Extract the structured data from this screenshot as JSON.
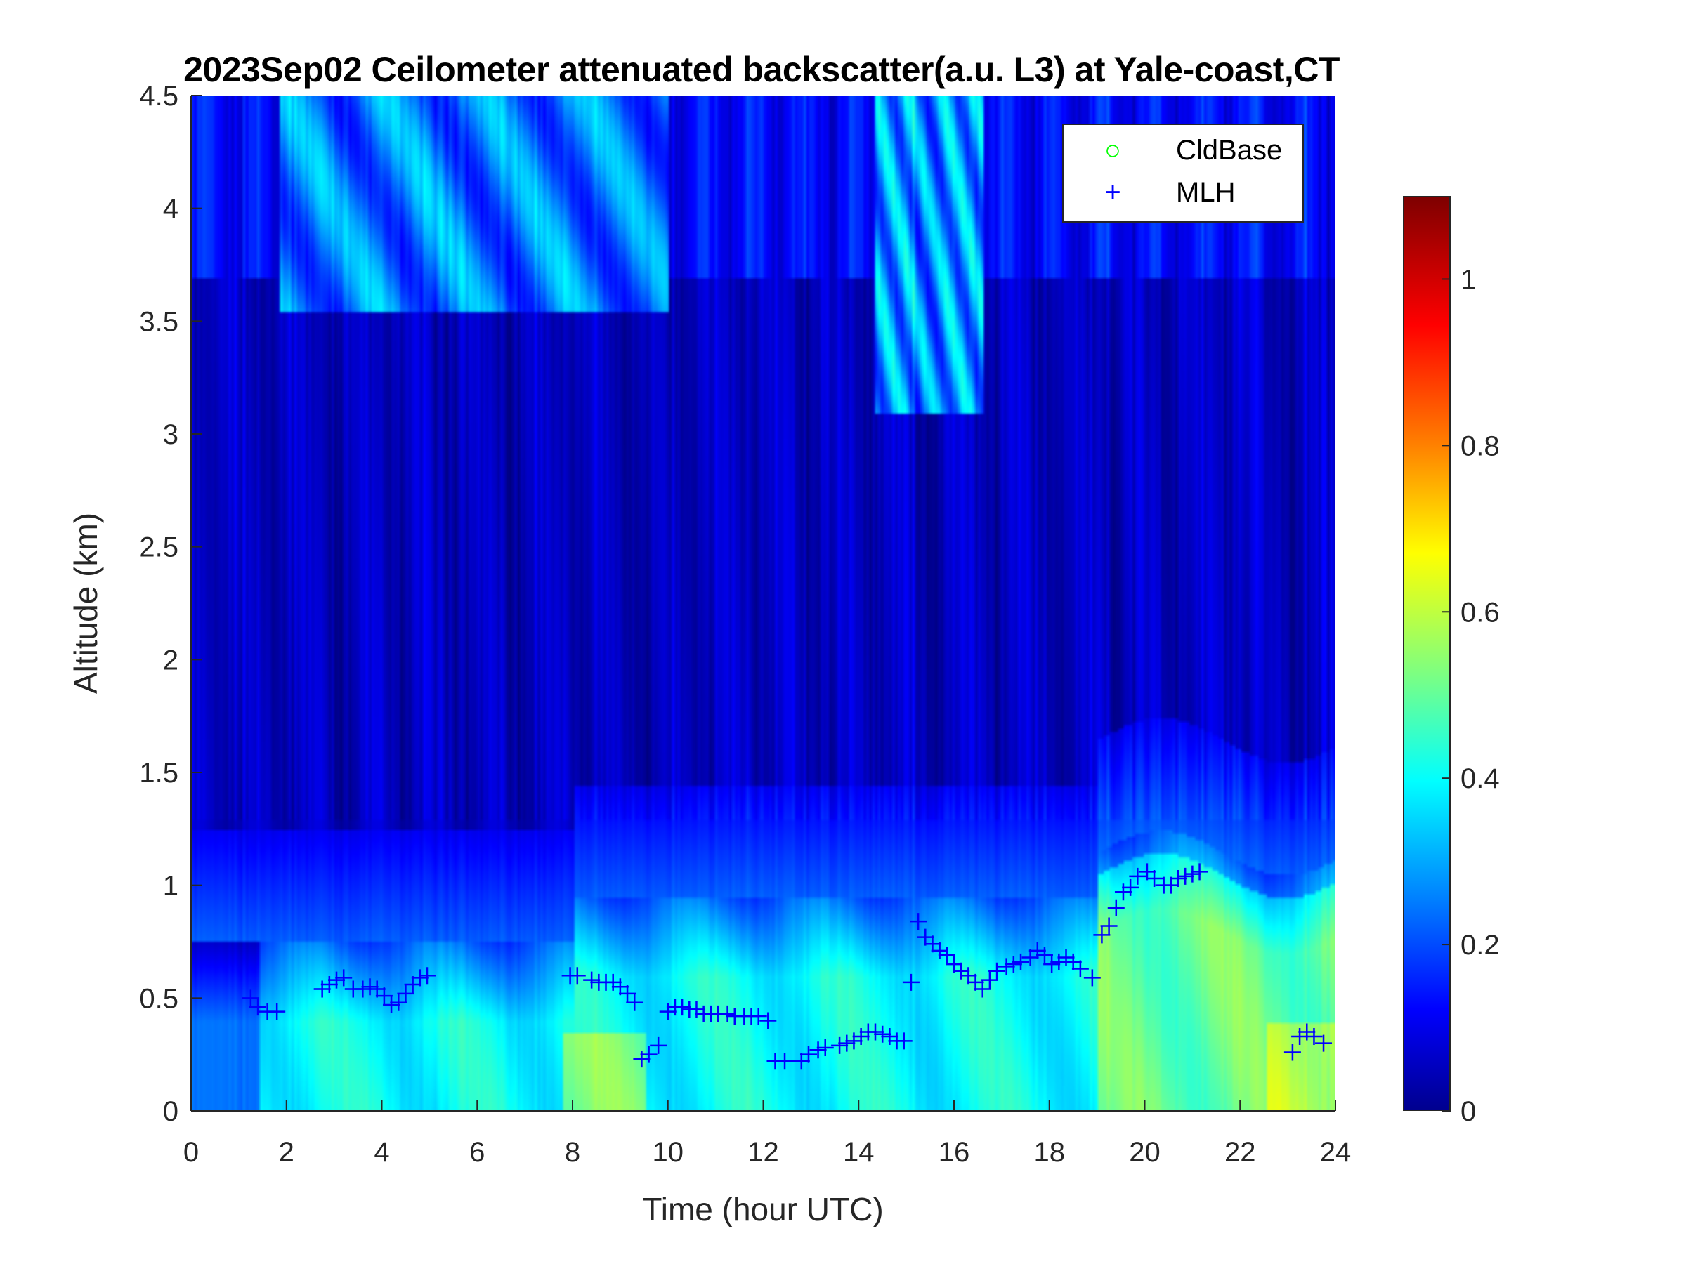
{
  "chart_data": {
    "type": "heatmap",
    "title": "2023Sep02 Ceilometer attenuated backscatter(a.u. L3) at Yale-coast,CT",
    "xlabel": "Time (hour UTC)",
    "ylabel": "Altitude (km)",
    "xlim": [
      0,
      24
    ],
    "ylim": [
      0,
      4.5
    ],
    "xticks": [
      "0",
      "2",
      "4",
      "6",
      "8",
      "10",
      "12",
      "14",
      "16",
      "18",
      "20",
      "22",
      "24"
    ],
    "yticks": [
      "0",
      "0.5",
      "1",
      "1.5",
      "2",
      "2.5",
      "3",
      "3.5",
      "4",
      "4.5"
    ],
    "colorbar": {
      "colormap": "jet",
      "clim": [
        0,
        1.1
      ],
      "ticks": [
        "0",
        "0.2",
        "0.4",
        "0.6",
        "0.8",
        "1"
      ]
    },
    "legend": {
      "placement": "top-right",
      "entries": [
        {
          "name": "CldBase",
          "marker": "circle",
          "color": "#00ff00"
        },
        {
          "name": "MLH",
          "marker": "plus",
          "color": "#0000ff"
        }
      ]
    },
    "series": [
      {
        "name": "CldBase",
        "points": []
      },
      {
        "name": "MLH",
        "points": [
          [
            1.25,
            0.5
          ],
          [
            1.4,
            0.46
          ],
          [
            1.6,
            0.44
          ],
          [
            1.8,
            0.44
          ],
          [
            2.75,
            0.54
          ],
          [
            2.9,
            0.56
          ],
          [
            3.05,
            0.58
          ],
          [
            3.2,
            0.59
          ],
          [
            3.4,
            0.54
          ],
          [
            3.6,
            0.54
          ],
          [
            3.75,
            0.55
          ],
          [
            3.9,
            0.54
          ],
          [
            4.05,
            0.51
          ],
          [
            4.2,
            0.47
          ],
          [
            4.35,
            0.48
          ],
          [
            4.5,
            0.52
          ],
          [
            4.65,
            0.56
          ],
          [
            4.8,
            0.59
          ],
          [
            4.95,
            0.6
          ],
          [
            7.95,
            0.6
          ],
          [
            8.1,
            0.6
          ],
          [
            8.4,
            0.58
          ],
          [
            8.55,
            0.57
          ],
          [
            8.7,
            0.57
          ],
          [
            8.85,
            0.57
          ],
          [
            9.0,
            0.55
          ],
          [
            9.15,
            0.52
          ],
          [
            9.3,
            0.48
          ],
          [
            9.45,
            0.23
          ],
          [
            9.6,
            0.25
          ],
          [
            9.8,
            0.29
          ],
          [
            10.0,
            0.44
          ],
          [
            10.15,
            0.46
          ],
          [
            10.3,
            0.46
          ],
          [
            10.45,
            0.45
          ],
          [
            10.6,
            0.45
          ],
          [
            10.75,
            0.43
          ],
          [
            10.9,
            0.43
          ],
          [
            11.05,
            0.43
          ],
          [
            11.25,
            0.43
          ],
          [
            11.4,
            0.42
          ],
          [
            11.6,
            0.42
          ],
          [
            11.75,
            0.42
          ],
          [
            11.9,
            0.42
          ],
          [
            12.1,
            0.4
          ],
          [
            12.25,
            0.22
          ],
          [
            12.45,
            0.22
          ],
          [
            12.8,
            0.22
          ],
          [
            12.95,
            0.25
          ],
          [
            13.15,
            0.27
          ],
          [
            13.3,
            0.28
          ],
          [
            13.6,
            0.29
          ],
          [
            13.75,
            0.3
          ],
          [
            13.9,
            0.31
          ],
          [
            14.05,
            0.33
          ],
          [
            14.2,
            0.35
          ],
          [
            14.35,
            0.35
          ],
          [
            14.5,
            0.34
          ],
          [
            14.65,
            0.33
          ],
          [
            14.8,
            0.31
          ],
          [
            14.95,
            0.31
          ],
          [
            15.1,
            0.57
          ],
          [
            15.25,
            0.84
          ],
          [
            15.4,
            0.77
          ],
          [
            15.55,
            0.74
          ],
          [
            15.7,
            0.71
          ],
          [
            15.85,
            0.69
          ],
          [
            16.0,
            0.65
          ],
          [
            16.15,
            0.62
          ],
          [
            16.3,
            0.6
          ],
          [
            16.45,
            0.57
          ],
          [
            16.6,
            0.54
          ],
          [
            16.75,
            0.58
          ],
          [
            16.9,
            0.62
          ],
          [
            17.1,
            0.64
          ],
          [
            17.25,
            0.65
          ],
          [
            17.4,
            0.66
          ],
          [
            17.6,
            0.68
          ],
          [
            17.75,
            0.71
          ],
          [
            17.9,
            0.69
          ],
          [
            18.05,
            0.65
          ],
          [
            18.2,
            0.66
          ],
          [
            18.35,
            0.68
          ],
          [
            18.5,
            0.66
          ],
          [
            18.65,
            0.63
          ],
          [
            18.9,
            0.59
          ],
          [
            19.1,
            0.78
          ],
          [
            19.25,
            0.82
          ],
          [
            19.4,
            0.9
          ],
          [
            19.55,
            0.97
          ],
          [
            19.7,
            0.99
          ],
          [
            19.85,
            1.04
          ],
          [
            20.05,
            1.06
          ],
          [
            20.2,
            1.03
          ],
          [
            20.4,
            1.0
          ],
          [
            20.55,
            1.0
          ],
          [
            20.7,
            1.03
          ],
          [
            20.85,
            1.04
          ],
          [
            21.0,
            1.05
          ],
          [
            21.15,
            1.06
          ],
          [
            23.1,
            0.26
          ],
          [
            23.25,
            0.33
          ],
          [
            23.4,
            0.35
          ],
          [
            23.55,
            0.33
          ],
          [
            23.75,
            0.3
          ]
        ]
      }
    ]
  }
}
